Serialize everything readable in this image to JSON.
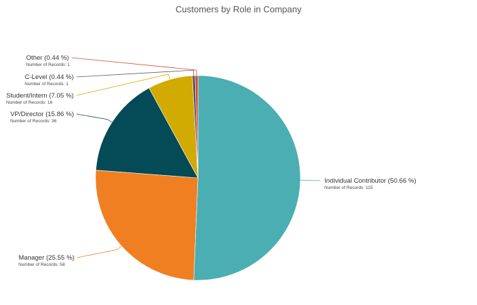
{
  "chart_data": {
    "type": "pie",
    "title": "Customers by Role in Company",
    "start_angle_deg": 0,
    "direction": "clockwise",
    "slices": [
      {
        "name": "Individual Contributor",
        "percent_label": "(50.66 %)",
        "percent": 50.66,
        "records_label": "Number of Records: 115",
        "records": 115,
        "color": "#4aaeb3"
      },
      {
        "name": "Manager",
        "percent_label": "(25.55 %)",
        "percent": 25.55,
        "records_label": "Number of Records: 58",
        "records": 58,
        "color": "#f07f22"
      },
      {
        "name": "VP/Director",
        "percent_label": "(15.86 %)",
        "percent": 15.86,
        "records_label": "Number of Records: 36",
        "records": 36,
        "color": "#044a57"
      },
      {
        "name": "Student/Intern",
        "percent_label": "(7.05 %)",
        "percent": 7.05,
        "records_label": "Number of Records: 16",
        "records": 16,
        "color": "#d1aa02"
      },
      {
        "name": "C-Level",
        "percent_label": "(0.44 %)",
        "percent": 0.44,
        "records_label": "Number of Records: 1",
        "records": 1,
        "color": "#5a5560"
      },
      {
        "name": "Other",
        "percent_label": "(0.44 %)",
        "percent": 0.44,
        "records_label": "Number of Records: 1",
        "records": 1,
        "color": "#d64533"
      }
    ]
  }
}
